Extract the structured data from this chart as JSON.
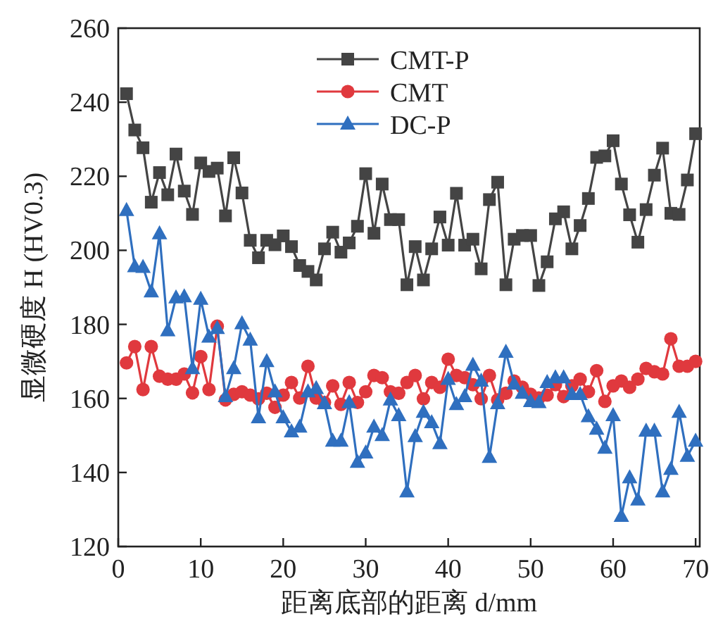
{
  "chart_data": {
    "type": "line",
    "xlabel": "距离底部的距离 d/mm",
    "ylabel": "显微硬度 H (HV0.3)",
    "xlim": [
      0,
      70.5
    ],
    "ylim": [
      120,
      260
    ],
    "xticks": [
      0,
      10,
      20,
      30,
      40,
      50,
      60,
      70
    ],
    "yticks": [
      120,
      140,
      160,
      180,
      200,
      220,
      240,
      260
    ],
    "legend": "top",
    "line_style": "solid",
    "x": [
      1,
      2,
      3,
      4,
      5,
      6,
      7,
      8,
      9,
      10,
      11,
      12,
      13,
      14,
      15,
      16,
      17,
      18,
      19,
      20,
      21,
      22,
      23,
      24,
      25,
      26,
      27,
      28,
      29,
      30,
      31,
      32,
      33,
      34,
      35,
      36,
      37,
      38,
      39,
      40,
      41,
      42,
      43,
      44,
      45,
      46,
      47,
      48,
      49,
      50,
      51,
      52,
      53,
      54,
      55,
      56,
      57,
      58,
      59,
      60,
      61,
      62,
      63,
      64,
      65,
      66,
      67,
      68,
      69,
      70
    ],
    "series": [
      {
        "name": "CMT-P",
        "color": "#444444",
        "marker": "square",
        "values": [
          242.3,
          232.5,
          227.7,
          213,
          221,
          215,
          226,
          216,
          209.7,
          223.6,
          221.3,
          222.2,
          209.3,
          225,
          215.5,
          202.7,
          198,
          202.7,
          201.5,
          203.9,
          201,
          195.9,
          194.3,
          192,
          200.4,
          204.9,
          199.5,
          202,
          206.5,
          220.7,
          204.6,
          217.9,
          208.3,
          208.3,
          190.7,
          201,
          192,
          200.4,
          209,
          201.4,
          215.4,
          201.4,
          203,
          195,
          213.7,
          218.4,
          190.7,
          203,
          204,
          204,
          190.5,
          196.9,
          208.5,
          210.4,
          200.4,
          206.7,
          214,
          225.1,
          225.5,
          229.6,
          217.9,
          209.6,
          202.2,
          211,
          220.3,
          227.6,
          210,
          209.7,
          219,
          231.5
        ]
      },
      {
        "name": "CMT",
        "color": "#e0393e",
        "marker": "circle",
        "values": [
          169.6,
          174,
          162.4,
          174,
          166,
          165.2,
          165.2,
          166.6,
          161.5,
          171.3,
          162.4,
          179.5,
          159.6,
          161.1,
          161.8,
          160.9,
          159.9,
          161.4,
          157.6,
          160.9,
          164.3,
          160.1,
          168.7,
          160.1,
          158.9,
          163.4,
          158.4,
          164.3,
          158.9,
          161.8,
          166.2,
          165.6,
          161.8,
          161.4,
          164.3,
          166.2,
          159.9,
          164.3,
          163,
          170.6,
          166.2,
          165.6,
          163.7,
          159.9,
          166.2,
          159.6,
          161.4,
          164.7,
          163,
          161.1,
          160.1,
          160.9,
          163.7,
          160.5,
          163.4,
          165.2,
          161.8,
          167.5,
          159.2,
          163.4,
          164.7,
          163,
          165.2,
          168.1,
          167.2,
          166.6,
          176.1,
          168.7,
          168.7,
          170
        ]
      },
      {
        "name": "DC-P",
        "color": "#2f6fbf",
        "marker": "triangle",
        "values": [
          210.8,
          195.6,
          195.4,
          188.8,
          204.5,
          178.3,
          187.2,
          187.5,
          168.1,
          186.8,
          176.6,
          178.9,
          160.5,
          168.1,
          180.2,
          175.8,
          154.8,
          170,
          161.8,
          154.8,
          151,
          152.3,
          161.8,
          162.7,
          158.6,
          148.5,
          148.5,
          158.9,
          142.8,
          145.3,
          152.3,
          150,
          159.6,
          155.4,
          134.8,
          149.7,
          156.3,
          153.5,
          147.8,
          165.2,
          158.4,
          160.5,
          169,
          164.7,
          144.1,
          158.6,
          172.5,
          163.9,
          161.4,
          159.2,
          158.9,
          164.3,
          165.6,
          165.6,
          161.1,
          161.1,
          155.1,
          151.7,
          146.6,
          155.4,
          128.2,
          138.6,
          132.6,
          151.2,
          151.2,
          134.8,
          140.9,
          156.3,
          144.4,
          148.5
        ]
      }
    ]
  }
}
